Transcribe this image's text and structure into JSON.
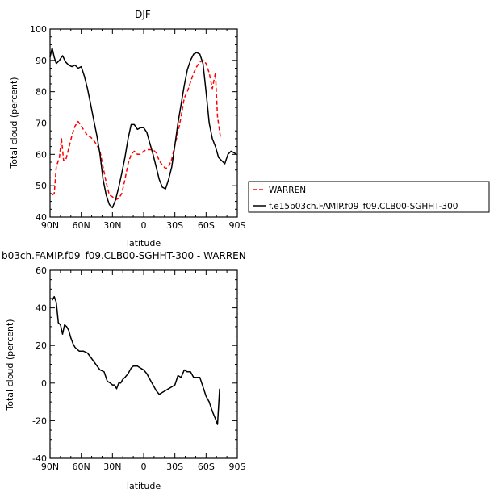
{
  "chart_data": [
    {
      "type": "line",
      "title": "DJF",
      "xlabel": "latitude",
      "ylabel": "Total cloud (percent)",
      "xlim": [
        -90,
        90
      ],
      "ylim": [
        40,
        100
      ],
      "xticks": [
        -90,
        -60,
        -30,
        0,
        30,
        60,
        90
      ],
      "xtick_labels": [
        "90N",
        "60N",
        "30N",
        "0",
        "30S",
        "60S",
        "90S"
      ],
      "yticks": [
        40,
        50,
        60,
        70,
        80,
        90,
        100
      ],
      "ytick_labels": [
        "40",
        "50",
        "60",
        "70",
        "80",
        "90",
        "100"
      ],
      "legend": "right",
      "series": [
        {
          "name": "WARREN",
          "color": "#ff0000",
          "style": "dashed",
          "x": [
            -88,
            -86,
            -84,
            -81,
            -79,
            -77,
            -75,
            -72,
            -69,
            -66,
            -63,
            -60,
            -57,
            -54,
            -51,
            -48,
            -45,
            -42,
            -39,
            -36,
            -33,
            -30,
            -27,
            -24,
            -21,
            -18,
            -15,
            -12,
            -9,
            -6,
            -3,
            0,
            3,
            6,
            9,
            12,
            15,
            18,
            21,
            24,
            27,
            30,
            33,
            36,
            39,
            42,
            45,
            48,
            51,
            54,
            57,
            60,
            63,
            66,
            69,
            71,
            74
          ],
          "y": [
            47,
            47.5,
            56,
            59,
            65,
            58,
            58,
            62,
            66,
            69,
            70.5,
            69,
            67.5,
            66,
            65.5,
            64.5,
            63,
            61,
            56,
            51,
            47,
            46.5,
            45.5,
            46,
            47.5,
            52,
            57,
            60,
            61,
            60,
            60,
            61,
            61.5,
            61.5,
            61.5,
            60.5,
            58,
            56.5,
            55.5,
            56,
            58.5,
            63,
            67,
            72,
            78,
            80,
            83,
            86,
            88,
            89.5,
            90,
            89,
            86,
            81,
            86,
            72,
            65
          ]
        },
        {
          "name": "f.e15b03ch.FAMIP.f09_f09.CLB00-SGHHT-300",
          "color": "#000000",
          "style": "solid",
          "x": [
            -90,
            -88,
            -86,
            -84,
            -81,
            -78,
            -75,
            -72,
            -69,
            -66,
            -63,
            -60,
            -57,
            -54,
            -51,
            -48,
            -45,
            -42,
            -39,
            -36,
            -33,
            -30,
            -27,
            -24,
            -21,
            -18,
            -15,
            -12,
            -9,
            -6,
            -3,
            0,
            3,
            6,
            9,
            12,
            15,
            18,
            21,
            24,
            27,
            30,
            33,
            36,
            39,
            42,
            45,
            48,
            51,
            54,
            57,
            60,
            63,
            66,
            69,
            72,
            75,
            78,
            81,
            84,
            87,
            89
          ],
          "y": [
            91,
            94,
            91,
            89,
            90,
            91.5,
            89.5,
            88.5,
            88,
            88.5,
            87.5,
            88,
            85,
            81,
            76,
            71,
            66,
            60,
            52,
            47,
            44,
            43,
            45.5,
            49.5,
            54,
            59,
            65,
            69.5,
            69.5,
            68,
            68.5,
            68.5,
            67,
            63.5,
            60,
            56,
            52,
            49.5,
            49,
            52,
            56,
            63,
            70,
            76,
            82,
            87,
            90,
            92,
            92.5,
            92,
            89,
            80,
            70,
            65,
            62.5,
            59,
            58,
            57,
            60,
            61,
            60.5,
            60
          ]
        }
      ]
    },
    {
      "type": "line",
      "title": "b03ch.FAMIP.f09_f09.CLB00-SGHHT-300 - WARREN",
      "xlabel": "latitude",
      "ylabel": "Total cloud (percent)",
      "xlim": [
        -90,
        90
      ],
      "ylim": [
        -40,
        60
      ],
      "xticks": [
        -90,
        -60,
        -30,
        0,
        30,
        60,
        90
      ],
      "xtick_labels": [
        "90N",
        "60N",
        "30N",
        "0",
        "30S",
        "60S",
        "90S"
      ],
      "yticks": [
        -40,
        -20,
        0,
        20,
        40,
        60
      ],
      "ytick_labels": [
        "-40",
        "-20",
        "0",
        "20",
        "40",
        "60"
      ],
      "series": [
        {
          "color": "#000000",
          "style": "solid",
          "x": [
            -88,
            -86,
            -84,
            -82,
            -80,
            -78,
            -76,
            -74,
            -72,
            -70,
            -68,
            -66,
            -62,
            -58,
            -54,
            -50,
            -46,
            -42,
            -38,
            -35,
            -32,
            -30,
            -28,
            -26,
            -24,
            -22,
            -20,
            -18,
            -15,
            -12,
            -10,
            -8,
            -6,
            -3,
            0,
            3,
            6,
            9,
            12,
            15,
            18,
            21,
            24,
            27,
            30,
            33,
            36,
            39,
            42,
            45,
            48,
            51,
            54,
            57,
            60,
            63,
            66,
            69,
            71,
            73
          ],
          "y": [
            44,
            46,
            43,
            32,
            31,
            26,
            31,
            30,
            28,
            24,
            21,
            19,
            17,
            17,
            16,
            13,
            10,
            7,
            6,
            1,
            0,
            -1,
            -1,
            -3,
            0,
            0,
            2,
            3,
            5,
            8,
            9,
            9,
            9,
            8,
            7,
            5,
            2,
            -1,
            -4,
            -6,
            -5,
            -4,
            -3,
            -2,
            -1,
            4,
            3,
            7,
            6,
            6,
            3,
            3,
            3,
            -2,
            -7,
            -10,
            -15,
            -19,
            -22,
            -3
          ]
        }
      ]
    }
  ]
}
